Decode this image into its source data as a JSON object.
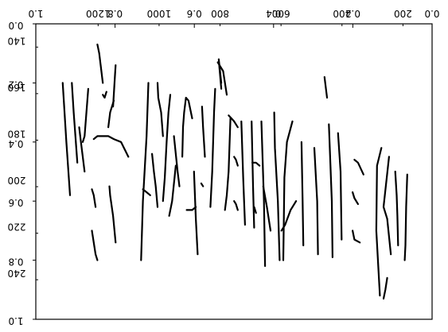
{
  "chart_data": {
    "type": "line",
    "title": "",
    "xlabel": "",
    "ylabel": "",
    "grid": false,
    "rendering": "mirrored-overlay",
    "axes_primary": {
      "x_ticks": [
        {
          "v": 0.0,
          "label": "0.0"
        },
        {
          "v": 0.2,
          "label": "0.2"
        },
        {
          "v": 0.4,
          "label": "0.4"
        },
        {
          "v": 0.6,
          "label": "0.6"
        },
        {
          "v": 0.8,
          "label": "0.8"
        },
        {
          "v": 1.0,
          "label": "1.0"
        }
      ],
      "y_ticks": [
        {
          "v": 0.0,
          "label": "0.0"
        },
        {
          "v": 0.2,
          "label": "0.2"
        },
        {
          "v": 0.4,
          "label": "0.4"
        },
        {
          "v": 0.6,
          "label": "0.6"
        },
        {
          "v": 0.8,
          "label": "0.8"
        },
        {
          "v": 1.0,
          "label": "1.0"
        }
      ],
      "xlim": [
        0,
        1
      ],
      "ylim": [
        0,
        1
      ]
    },
    "axes_secondary": {
      "x_ticks": [
        {
          "v": 0,
          "label": "0"
        },
        {
          "v": 200,
          "label": "200"
        },
        {
          "v": 400,
          "label": "400"
        },
        {
          "v": 600,
          "label": "600"
        },
        {
          "v": 800,
          "label": "800"
        },
        {
          "v": 1000,
          "label": "1000"
        },
        {
          "v": 1200,
          "label": "1200"
        }
      ],
      "y_ticks": [
        {
          "v": 140,
          "label": "140"
        },
        {
          "v": 160,
          "label": "160"
        },
        {
          "v": 180,
          "label": "180"
        },
        {
          "v": 200,
          "label": "200"
        },
        {
          "v": 220,
          "label": "220"
        },
        {
          "v": 240,
          "label": "240"
        }
      ],
      "xlim": [
        0,
        1300
      ],
      "ylim": [
        130,
        257
      ]
    },
    "series": [
      {
        "points": [
          [
            0.055,
            0.51
          ],
          [
            0.058,
            0.62
          ],
          [
            0.06,
            0.75
          ],
          [
            0.062,
            0.8
          ]
        ]
      },
      {
        "points": [
          [
            0.08,
            0.75
          ],
          [
            0.082,
            0.65
          ],
          [
            0.084,
            0.58
          ],
          [
            0.088,
            0.5
          ]
        ]
      },
      {
        "points": [
          [
            0.1,
            0.78
          ],
          [
            0.11,
            0.66
          ],
          [
            0.12,
            0.62
          ],
          [
            0.105,
            0.45
          ]
        ]
      },
      {
        "points": [
          [
            0.11,
            0.86
          ],
          [
            0.115,
            0.9
          ],
          [
            0.12,
            0.93
          ]
        ]
      },
      {
        "points": [
          [
            0.13,
            0.92
          ],
          [
            0.14,
            0.7
          ],
          [
            0.138,
            0.48
          ],
          [
            0.126,
            0.42
          ]
        ]
      },
      {
        "points": [
          [
            0.175,
            0.51
          ],
          [
            0.19,
            0.47
          ],
          [
            0.2,
            0.46
          ]
        ]
      },
      {
        "points": [
          [
            0.19,
            0.61
          ],
          [
            0.2,
            0.59
          ],
          [
            0.205,
            0.57
          ]
        ]
      },
      {
        "points": [
          [
            0.185,
            0.74
          ],
          [
            0.2,
            0.73
          ],
          [
            0.205,
            0.7
          ]
        ]
      },
      {
        "points": [
          [
            0.235,
            0.73
          ],
          [
            0.238,
            0.5
          ],
          [
            0.245,
            0.37
          ]
        ]
      },
      {
        "points": [
          [
            0.26,
            0.79
          ],
          [
            0.262,
            0.6
          ],
          [
            0.27,
            0.34
          ]
        ]
      },
      {
        "points": [
          [
            0.275,
            0.25
          ],
          [
            0.28,
            0.2
          ],
          [
            0.282,
            0.18
          ]
        ]
      },
      {
        "points": [
          [
            0.3,
            0.78
          ],
          [
            0.302,
            0.6
          ],
          [
            0.31,
            0.42
          ]
        ]
      },
      {
        "points": [
          [
            0.34,
            0.75
          ],
          [
            0.342,
            0.6
          ],
          [
            0.345,
            0.4
          ]
        ]
      },
      {
        "points": [
          [
            0.37,
            0.33
          ],
          [
            0.385,
            0.4
          ],
          [
            0.392,
            0.52
          ],
          [
            0.395,
            0.8
          ]
        ]
      },
      {
        "points": [
          [
            0.36,
            0.6
          ],
          [
            0.375,
            0.63
          ],
          [
            0.39,
            0.68
          ],
          [
            0.4,
            0.7
          ]
        ]
      },
      {
        "points": [
          [
            0.405,
            0.8
          ],
          [
            0.41,
            0.6
          ],
          [
            0.418,
            0.42
          ],
          [
            0.42,
            0.3
          ]
        ]
      },
      {
        "points": [
          [
            0.43,
            0.7
          ],
          [
            0.44,
            0.62
          ],
          [
            0.45,
            0.55
          ]
        ]
      },
      {
        "points": [
          [
            0.445,
            0.82
          ],
          [
            0.448,
            0.6
          ],
          [
            0.455,
            0.33
          ]
        ]
      },
      {
        "points": [
          [
            0.47,
            0.64
          ],
          [
            0.475,
            0.62
          ]
        ]
      },
      {
        "points": [
          [
            0.46,
            0.48
          ],
          [
            0.47,
            0.47
          ],
          [
            0.48,
            0.47
          ]
        ]
      },
      {
        "points": [
          [
            0.475,
            0.69
          ],
          [
            0.478,
            0.55
          ],
          [
            0.482,
            0.33
          ]
        ]
      },
      {
        "points": [
          [
            0.5,
            0.68
          ],
          [
            0.505,
            0.52
          ],
          [
            0.51,
            0.33
          ]
        ]
      },
      {
        "points": [
          [
            0.52,
            0.35
          ],
          [
            0.53,
            0.33
          ],
          [
            0.545,
            0.31
          ]
        ]
      },
      {
        "points": [
          [
            0.52,
            0.48
          ],
          [
            0.525,
            0.46
          ],
          [
            0.53,
            0.45
          ]
        ]
      },
      {
        "points": [
          [
            0.52,
            0.63
          ],
          [
            0.525,
            0.61
          ],
          [
            0.53,
            0.6
          ]
        ]
      },
      {
        "points": [
          [
            0.54,
            0.32
          ],
          [
            0.545,
            0.5
          ],
          [
            0.55,
            0.58
          ],
          [
            0.555,
            0.63
          ]
        ]
      },
      {
        "points": [
          [
            0.565,
            0.22
          ],
          [
            0.57,
            0.15
          ],
          [
            0.572,
            0.12
          ],
          [
            0.565,
            0.2
          ]
        ]
      },
      {
        "points": [
          [
            0.55,
            0.24
          ],
          [
            0.56,
            0.16
          ],
          [
            0.575,
            0.13
          ]
        ]
      },
      {
        "points": [
          [
            0.582,
            0.22
          ],
          [
            0.585,
            0.3
          ],
          [
            0.59,
            0.5
          ],
          [
            0.595,
            0.62
          ]
        ]
      },
      {
        "points": [
          [
            0.61,
            0.45
          ],
          [
            0.615,
            0.35
          ],
          [
            0.618,
            0.28
          ]
        ]
      },
      {
        "points": [
          [
            0.615,
            0.55
          ],
          [
            0.62,
            0.54
          ]
        ]
      },
      {
        "points": [
          [
            0.635,
            0.62
          ],
          [
            0.645,
            0.63
          ],
          [
            0.66,
            0.63
          ]
        ]
      },
      {
        "points": [
          [
            0.63,
            0.78
          ],
          [
            0.635,
            0.66
          ],
          [
            0.64,
            0.5
          ]
        ]
      },
      {
        "points": [
          [
            0.645,
            0.32
          ],
          [
            0.655,
            0.26
          ],
          [
            0.662,
            0.25
          ],
          [
            0.667,
            0.3
          ],
          [
            0.67,
            0.35
          ],
          [
            0.672,
            0.45
          ]
        ]
      },
      {
        "points": [
          [
            0.68,
            0.55
          ],
          [
            0.685,
            0.5
          ],
          [
            0.69,
            0.44
          ],
          [
            0.695,
            0.38
          ]
        ]
      },
      {
        "points": [
          [
            0.69,
            0.48
          ],
          [
            0.7,
            0.6
          ],
          [
            0.708,
            0.65
          ]
        ]
      },
      {
        "points": [
          [
            0.705,
            0.24
          ],
          [
            0.71,
            0.3
          ],
          [
            0.715,
            0.4
          ],
          [
            0.72,
            0.52
          ],
          [
            0.725,
            0.6
          ]
        ]
      },
      {
        "points": [
          [
            0.725,
            0.38
          ],
          [
            0.73,
            0.3
          ],
          [
            0.738,
            0.25
          ],
          [
            0.74,
            0.2
          ]
        ]
      },
      {
        "points": [
          [
            0.74,
            0.62
          ],
          [
            0.745,
            0.55
          ],
          [
            0.75,
            0.5
          ],
          [
            0.755,
            0.44
          ]
        ]
      },
      {
        "points": [
          [
            0.76,
            0.58
          ],
          [
            0.77,
            0.57
          ],
          [
            0.78,
            0.56
          ]
        ]
      },
      {
        "points": [
          [
            0.765,
            0.2
          ],
          [
            0.77,
            0.38
          ],
          [
            0.78,
            0.6
          ],
          [
            0.785,
            0.8
          ]
        ]
      },
      {
        "points": [
          [
            0.82,
            0.45
          ],
          [
            0.84,
            0.4
          ],
          [
            0.86,
            0.39
          ],
          [
            0.875,
            0.38
          ],
          [
            0.895,
            0.38
          ],
          [
            0.905,
            0.38
          ],
          [
            0.915,
            0.39
          ]
        ]
      },
      {
        "points": [
          [
            0.855,
            0.14
          ],
          [
            0.858,
            0.2
          ],
          [
            0.862,
            0.28
          ]
        ]
      },
      {
        "points": [
          [
            0.86,
            0.26
          ],
          [
            0.87,
            0.3
          ],
          [
            0.875,
            0.35
          ]
        ]
      },
      {
        "points": [
          [
            0.88,
            0.23
          ],
          [
            0.885,
            0.25
          ],
          [
            0.89,
            0.24
          ]
        ]
      },
      {
        "points": [
          [
            0.89,
            0.2
          ],
          [
            0.9,
            0.1
          ],
          [
            0.905,
            0.07
          ]
        ]
      },
      {
        "points": [
          [
            0.91,
            0.62
          ],
          [
            0.915,
            0.58
          ],
          [
            0.92,
            0.56
          ]
        ]
      },
      {
        "points": [
          [
            0.905,
            0.8
          ],
          [
            0.91,
            0.78
          ],
          [
            0.92,
            0.7
          ]
        ]
      },
      {
        "points": [
          [
            0.93,
            0.22
          ],
          [
            0.935,
            0.3
          ],
          [
            0.94,
            0.38
          ],
          [
            0.945,
            0.4
          ]
        ]
      },
      {
        "points": [
          [
            0.94,
            0.5
          ],
          [
            0.95,
            0.4
          ],
          [
            0.955,
            0.35
          ]
        ]
      },
      {
        "points": [
          [
            0.96,
            0.47
          ],
          [
            0.97,
            0.3
          ],
          [
            0.975,
            0.2
          ]
        ]
      },
      {
        "points": [
          [
            0.98,
            0.58
          ],
          [
            0.99,
            0.4
          ],
          [
            1.0,
            0.2
          ]
        ]
      },
      {
        "points": [
          [
            0.855,
            0.74
          ],
          [
            0.862,
            0.65
          ],
          [
            0.87,
            0.58
          ],
          [
            0.872,
            0.55
          ]
        ]
      }
    ]
  }
}
